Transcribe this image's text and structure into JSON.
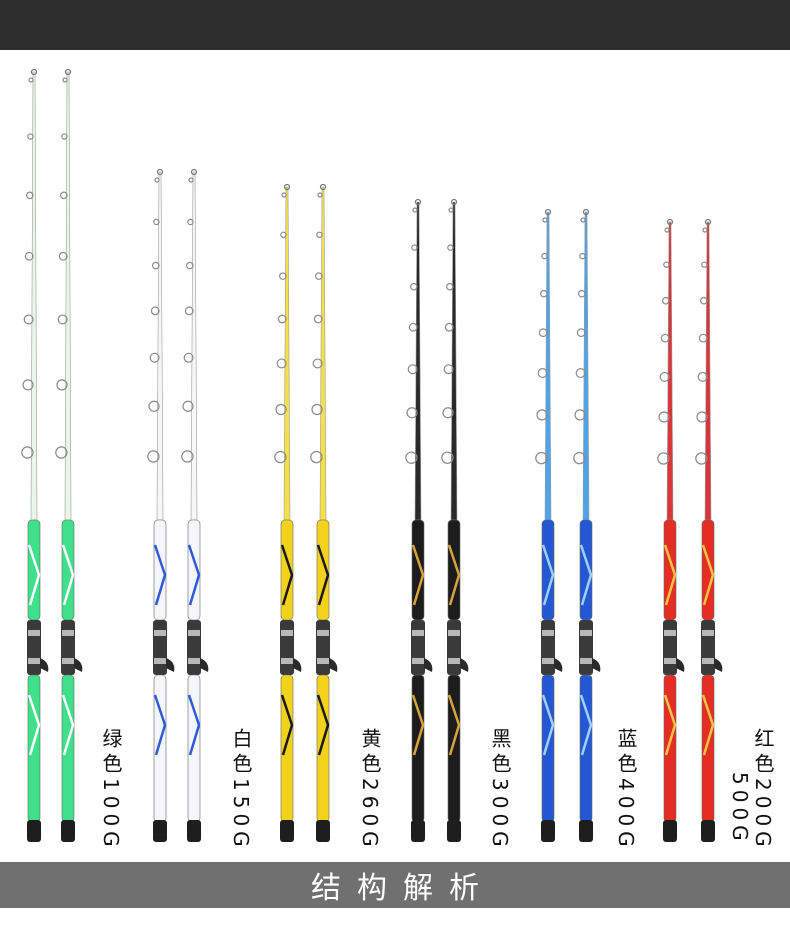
{
  "header": {},
  "rods": [
    {
      "color_label": "绿色100G",
      "rod": "#3ee08a",
      "accent": "#ffffff",
      "blank": "#e8f7ea"
    },
    {
      "color_label": "白色150G",
      "rod": "#f4f6fb",
      "accent": "#2f5bd6",
      "blank": "#f7f7f7"
    },
    {
      "color_label": "黄色260G",
      "rod": "#f3d21b",
      "accent": "#1a1a1a",
      "blank": "#f4e04a"
    },
    {
      "color_label": "黑色300G",
      "rod": "#1c1c1c",
      "accent": "#d8a43a",
      "blank": "#2a2a2a"
    },
    {
      "color_label": "蓝色400G",
      "rod": "#2457d3",
      "accent": "#9fd0ff",
      "blank": "#4fa3e8"
    },
    {
      "color_label": "红色200G",
      "color_label_2": "500G",
      "rod": "#e42d23",
      "accent": "#f5c542",
      "blank": "#d8363a"
    }
  ],
  "footer": {
    "title": "结构解析"
  }
}
